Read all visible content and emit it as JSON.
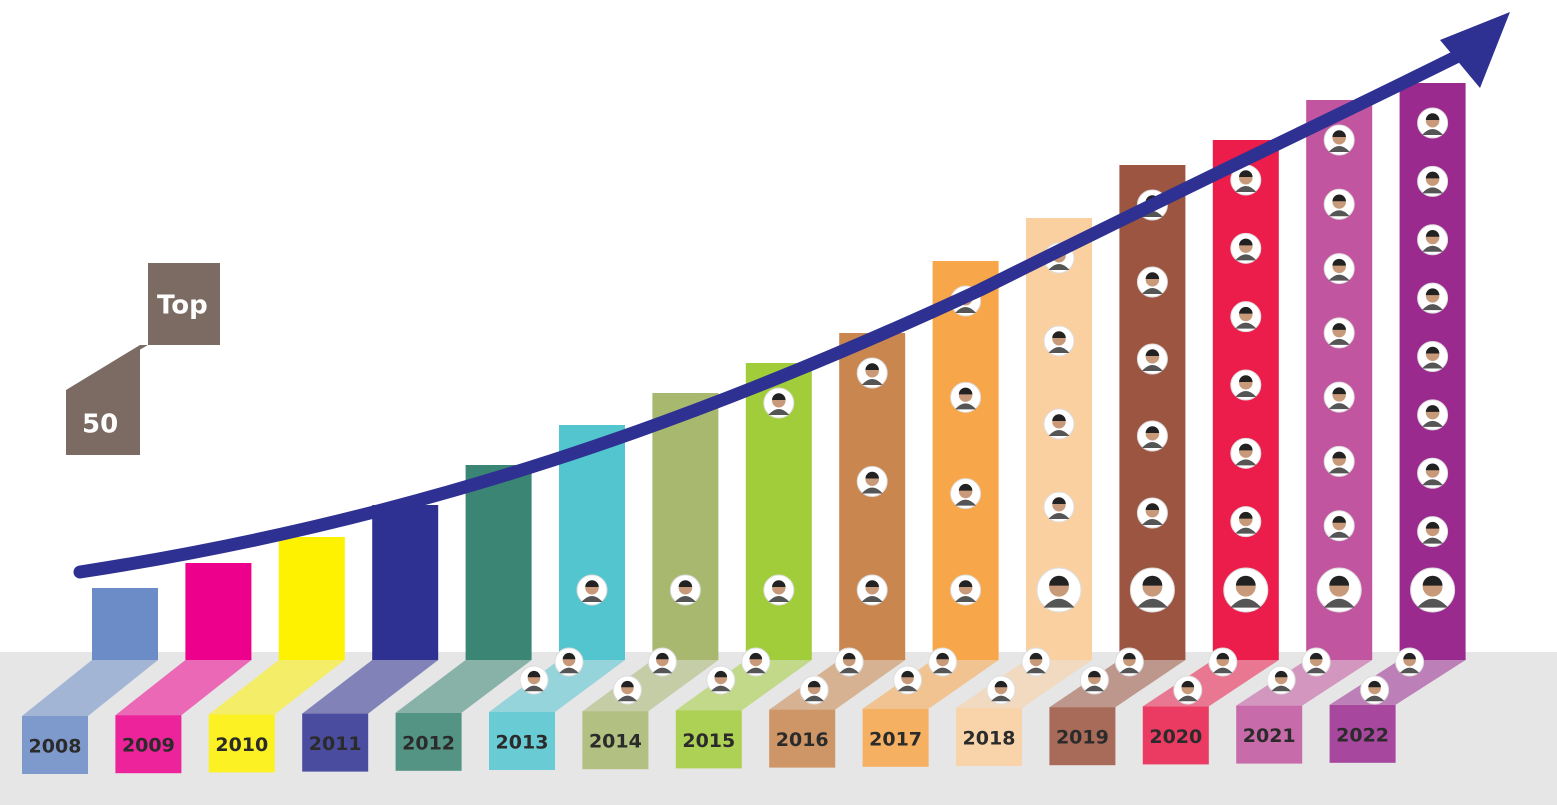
{
  "badge": {
    "top": "Top",
    "number": "50"
  },
  "years": [
    {
      "label": "2008",
      "color": "#6b8cc7"
    },
    {
      "label": "2009",
      "color": "#ec008c"
    },
    {
      "label": "2010",
      "color": "#fff200"
    },
    {
      "label": "2011",
      "color": "#2e3192"
    },
    {
      "label": "2012",
      "color": "#3a8573"
    },
    {
      "label": "2013",
      "color": "#52c5cf"
    },
    {
      "label": "2014",
      "color": "#a8b86f"
    },
    {
      "label": "2015",
      "color": "#a2cd3a"
    },
    {
      "label": "2016",
      "color": "#c9864f"
    },
    {
      "label": "2017",
      "color": "#f7a64a"
    },
    {
      "label": "2018",
      "color": "#fbd0a0"
    },
    {
      "label": "2019",
      "color": "#9c5541"
    },
    {
      "label": "2020",
      "color": "#ec1c4b"
    },
    {
      "label": "2021",
      "color": "#c2559f"
    },
    {
      "label": "2022",
      "color": "#9b2a8f"
    }
  ]
}
